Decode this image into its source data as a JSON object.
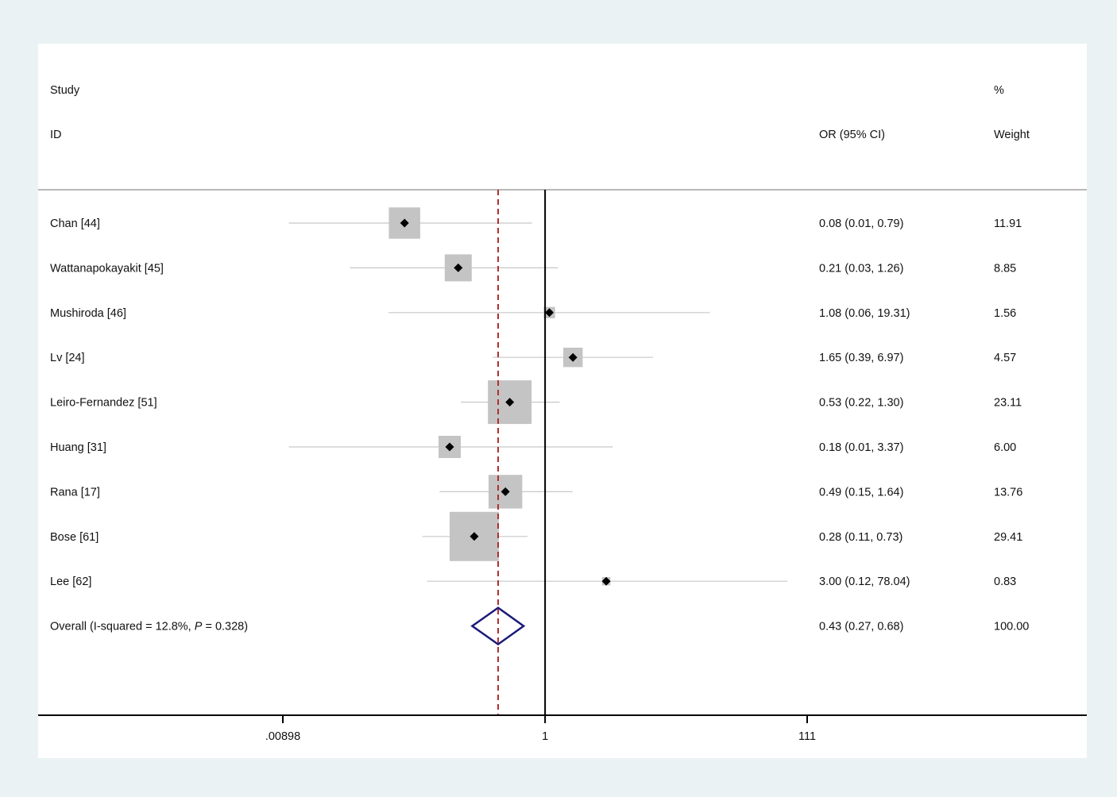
{
  "chart_data": {
    "type": "forest",
    "header": {
      "study_line1": "Study",
      "study_line2": "ID",
      "effect_label": "OR (95% CI)",
      "weight_line1": "%",
      "weight_line2": "Weight"
    },
    "scale": "log",
    "xlim": [
      0.00898,
      111
    ],
    "xticks": [
      {
        "value": 0.00898,
        "label": ".00898"
      },
      {
        "value": 1,
        "label": "1"
      },
      {
        "value": 111,
        "label": "111"
      }
    ],
    "null_line": 1,
    "pooled_line": 0.43,
    "studies": [
      {
        "name": "Chan  [44]",
        "or": 0.08,
        "lo": 0.01,
        "hi": 0.79,
        "or_ci_text": "0.08 (0.01, 0.79)",
        "weight": 11.91,
        "weight_text": "11.91"
      },
      {
        "name": "Wattanapokayakit  [45]",
        "or": 0.21,
        "lo": 0.03,
        "hi": 1.26,
        "or_ci_text": "0.21 (0.03, 1.26)",
        "weight": 8.85,
        "weight_text": "8.85"
      },
      {
        "name": "Mushiroda  [46]",
        "or": 1.08,
        "lo": 0.06,
        "hi": 19.31,
        "or_ci_text": "1.08 (0.06, 19.31)",
        "weight": 1.56,
        "weight_text": "1.56"
      },
      {
        "name": "Lv  [24]",
        "or": 1.65,
        "lo": 0.39,
        "hi": 6.97,
        "or_ci_text": "1.65 (0.39, 6.97)",
        "weight": 4.57,
        "weight_text": "4.57"
      },
      {
        "name": "Leiro-Fernandez [51]",
        "or": 0.53,
        "lo": 0.22,
        "hi": 1.3,
        "or_ci_text": "0.53 (0.22, 1.30)",
        "weight": 23.11,
        "weight_text": "23.11"
      },
      {
        "name": "Huang  [31]",
        "or": 0.18,
        "lo": 0.01,
        "hi": 3.37,
        "or_ci_text": "0.18 (0.01, 3.37)",
        "weight": 6.0,
        "weight_text": "6.00"
      },
      {
        "name": "Rana  [17]",
        "or": 0.49,
        "lo": 0.15,
        "hi": 1.64,
        "or_ci_text": "0.49 (0.15, 1.64)",
        "weight": 13.76,
        "weight_text": "13.76"
      },
      {
        "name": "Bose  [61]",
        "or": 0.28,
        "lo": 0.11,
        "hi": 0.73,
        "or_ci_text": "0.28 (0.11, 0.73)",
        "weight": 29.41,
        "weight_text": "29.41"
      },
      {
        "name": "Lee  [62]",
        "or": 3.0,
        "lo": 0.12,
        "hi": 78.04,
        "or_ci_text": "3.00 (0.12, 78.04)",
        "weight": 0.83,
        "weight_text": "0.83"
      }
    ],
    "overall": {
      "label_prefix": "Overall  (I-squared = 12.8%, ",
      "label_p": "P",
      "label_suffix": " = 0.328)",
      "or": 0.43,
      "lo": 0.27,
      "hi": 0.68,
      "or_ci_text": "0.43 (0.27, 0.68)",
      "weight_text": "100.00"
    },
    "colors": {
      "background": "#eaf2f3",
      "panel": "#ffffff",
      "weight_box": "#c4c4c4",
      "ci_line": "#c8c8c8",
      "point": "#000000",
      "null_line": "#000000",
      "pooled_line": "#b03030",
      "diamond": "#1a1a7a",
      "header_rule": "#b8b8b8"
    }
  }
}
